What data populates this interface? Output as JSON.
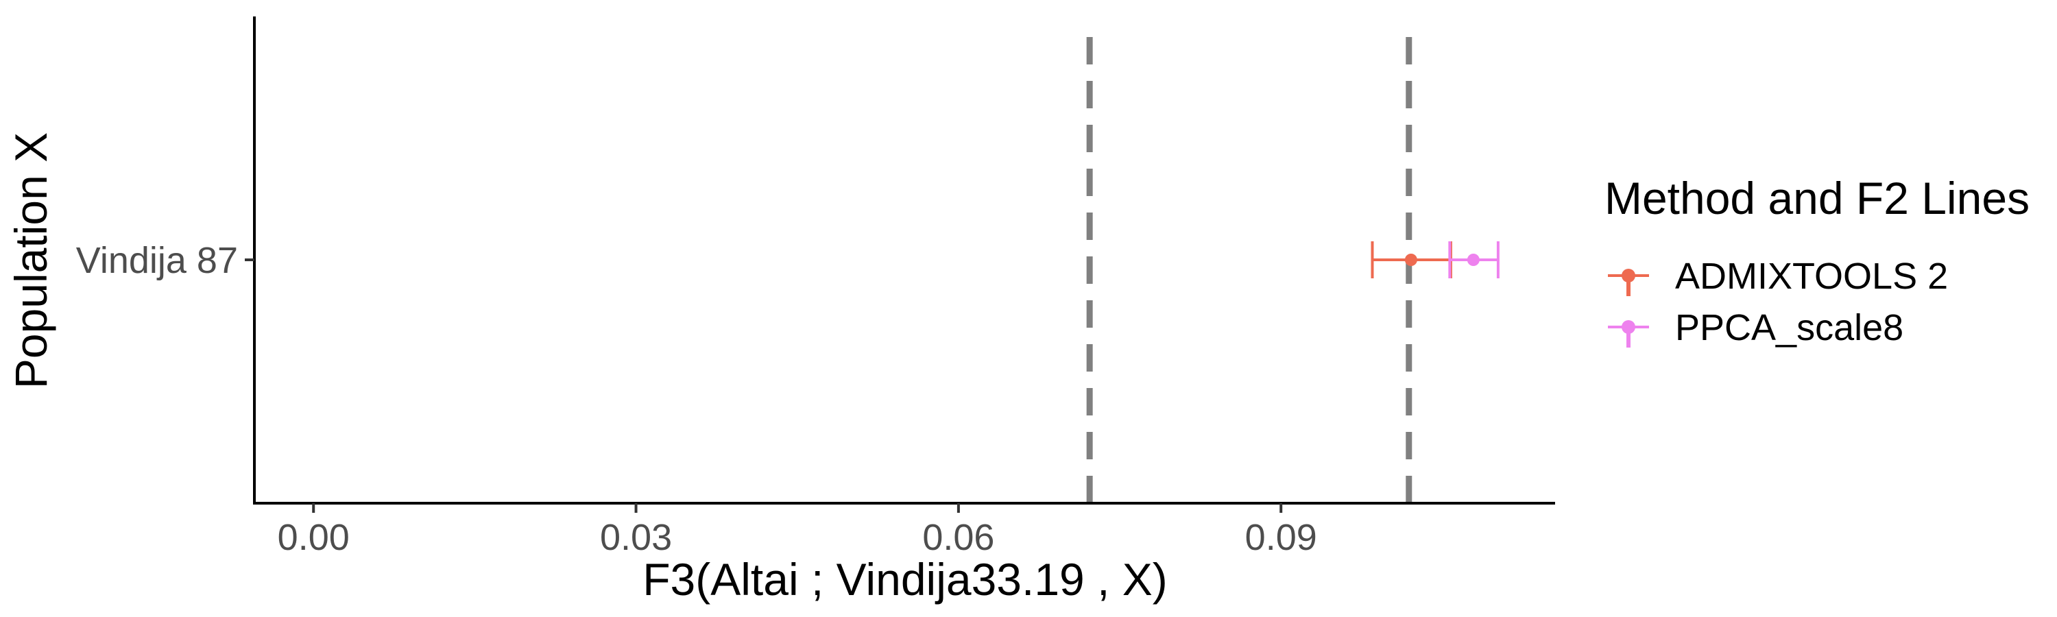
{
  "chart_data": {
    "type": "scatter",
    "xlabel": "F3(Altai ; Vindija33.19 , X)",
    "ylabel": "Population X",
    "x_ticks": [
      "0.00",
      "0.03",
      "0.06",
      "0.09"
    ],
    "x_tick_values": [
      0.0,
      0.03,
      0.06,
      0.09
    ],
    "xlim": [
      -0.0055,
      0.1155
    ],
    "grid": false,
    "categories": [
      "Vindija 87"
    ],
    "reference_lines": [
      {
        "x": 0.0722,
        "style": "dashed",
        "color": "#808080"
      },
      {
        "x": 0.1019,
        "style": "dashed",
        "color": "#808080"
      }
    ],
    "legend": {
      "title": "Method and F2 Lines",
      "placement": "right"
    },
    "series": [
      {
        "name": "ADMIXTOOLS 2",
        "color": "#EE6A50",
        "points": [
          {
            "category": "Vindija 87",
            "x": 0.1021,
            "xmin": 0.0985,
            "xmax": 0.1058
          }
        ]
      },
      {
        "name": "PPCA_scale8",
        "color": "#EE82EE",
        "points": [
          {
            "category": "Vindija 87",
            "x": 0.1079,
            "xmin": 0.1057,
            "xmax": 0.1102
          }
        ]
      }
    ]
  }
}
